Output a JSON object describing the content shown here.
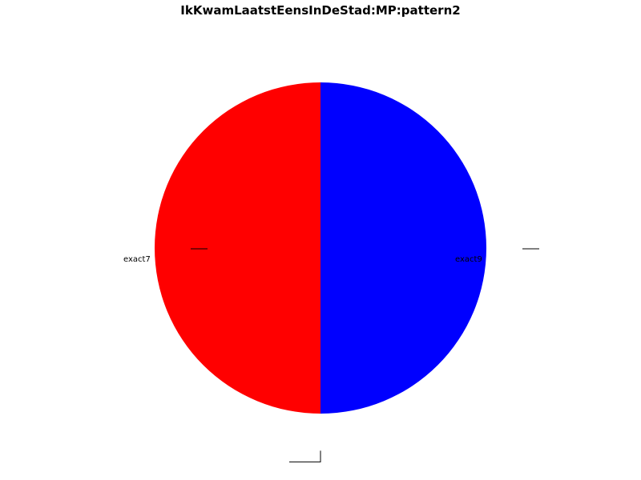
{
  "chart_data": {
    "type": "pie",
    "title": "IkKwamLaatstEensInDeStad:MP:pattern2",
    "slices": [
      {
        "label": "exact7",
        "value": 50,
        "color": "#ff0000"
      },
      {
        "label": "",
        "value": 0,
        "color": "#00ff00"
      },
      {
        "label": "exact9",
        "value": 50,
        "color": "#0000ff"
      }
    ],
    "explode": [
      0.0,
      0.2,
      0.0
    ],
    "start_angle_deg": 90,
    "counterclock": true
  }
}
